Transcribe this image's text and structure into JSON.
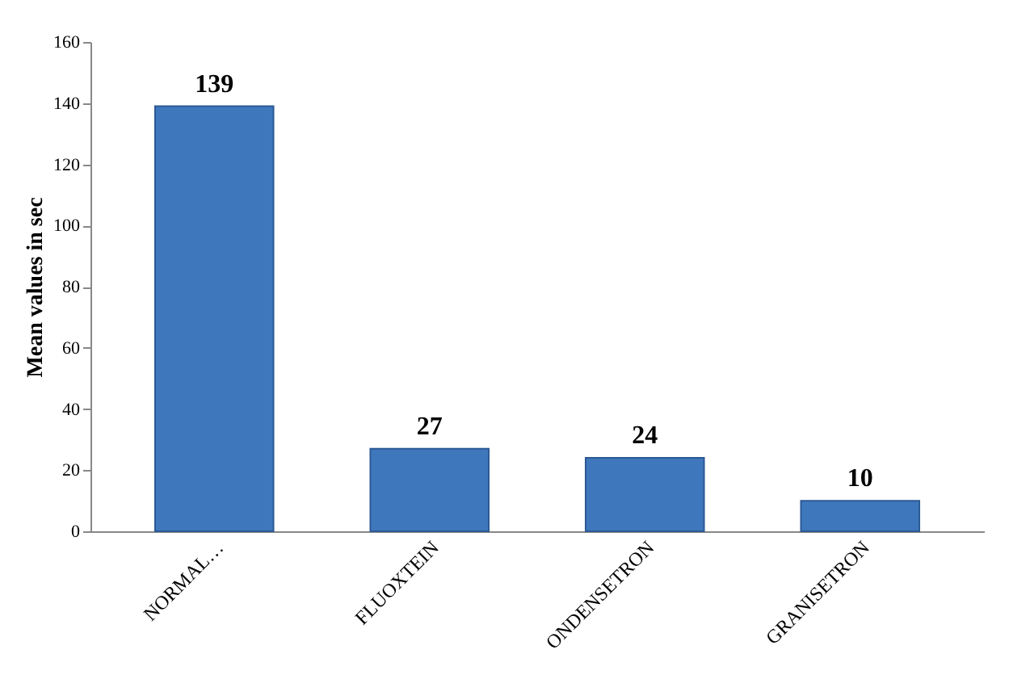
{
  "chart_data": {
    "type": "bar",
    "ylabel": "Mean values in sec",
    "categories": [
      "NORMAL…",
      "FLUOXTEIN",
      "ONDENSETRON",
      "GRANISETRON"
    ],
    "values": [
      139,
      27,
      24,
      10
    ],
    "color": "#3f77bd",
    "ylim": [
      0,
      160
    ],
    "yticks": [
      0,
      20,
      40,
      60,
      80,
      100,
      120,
      140,
      160
    ],
    "grid": false,
    "data_labels": true
  }
}
